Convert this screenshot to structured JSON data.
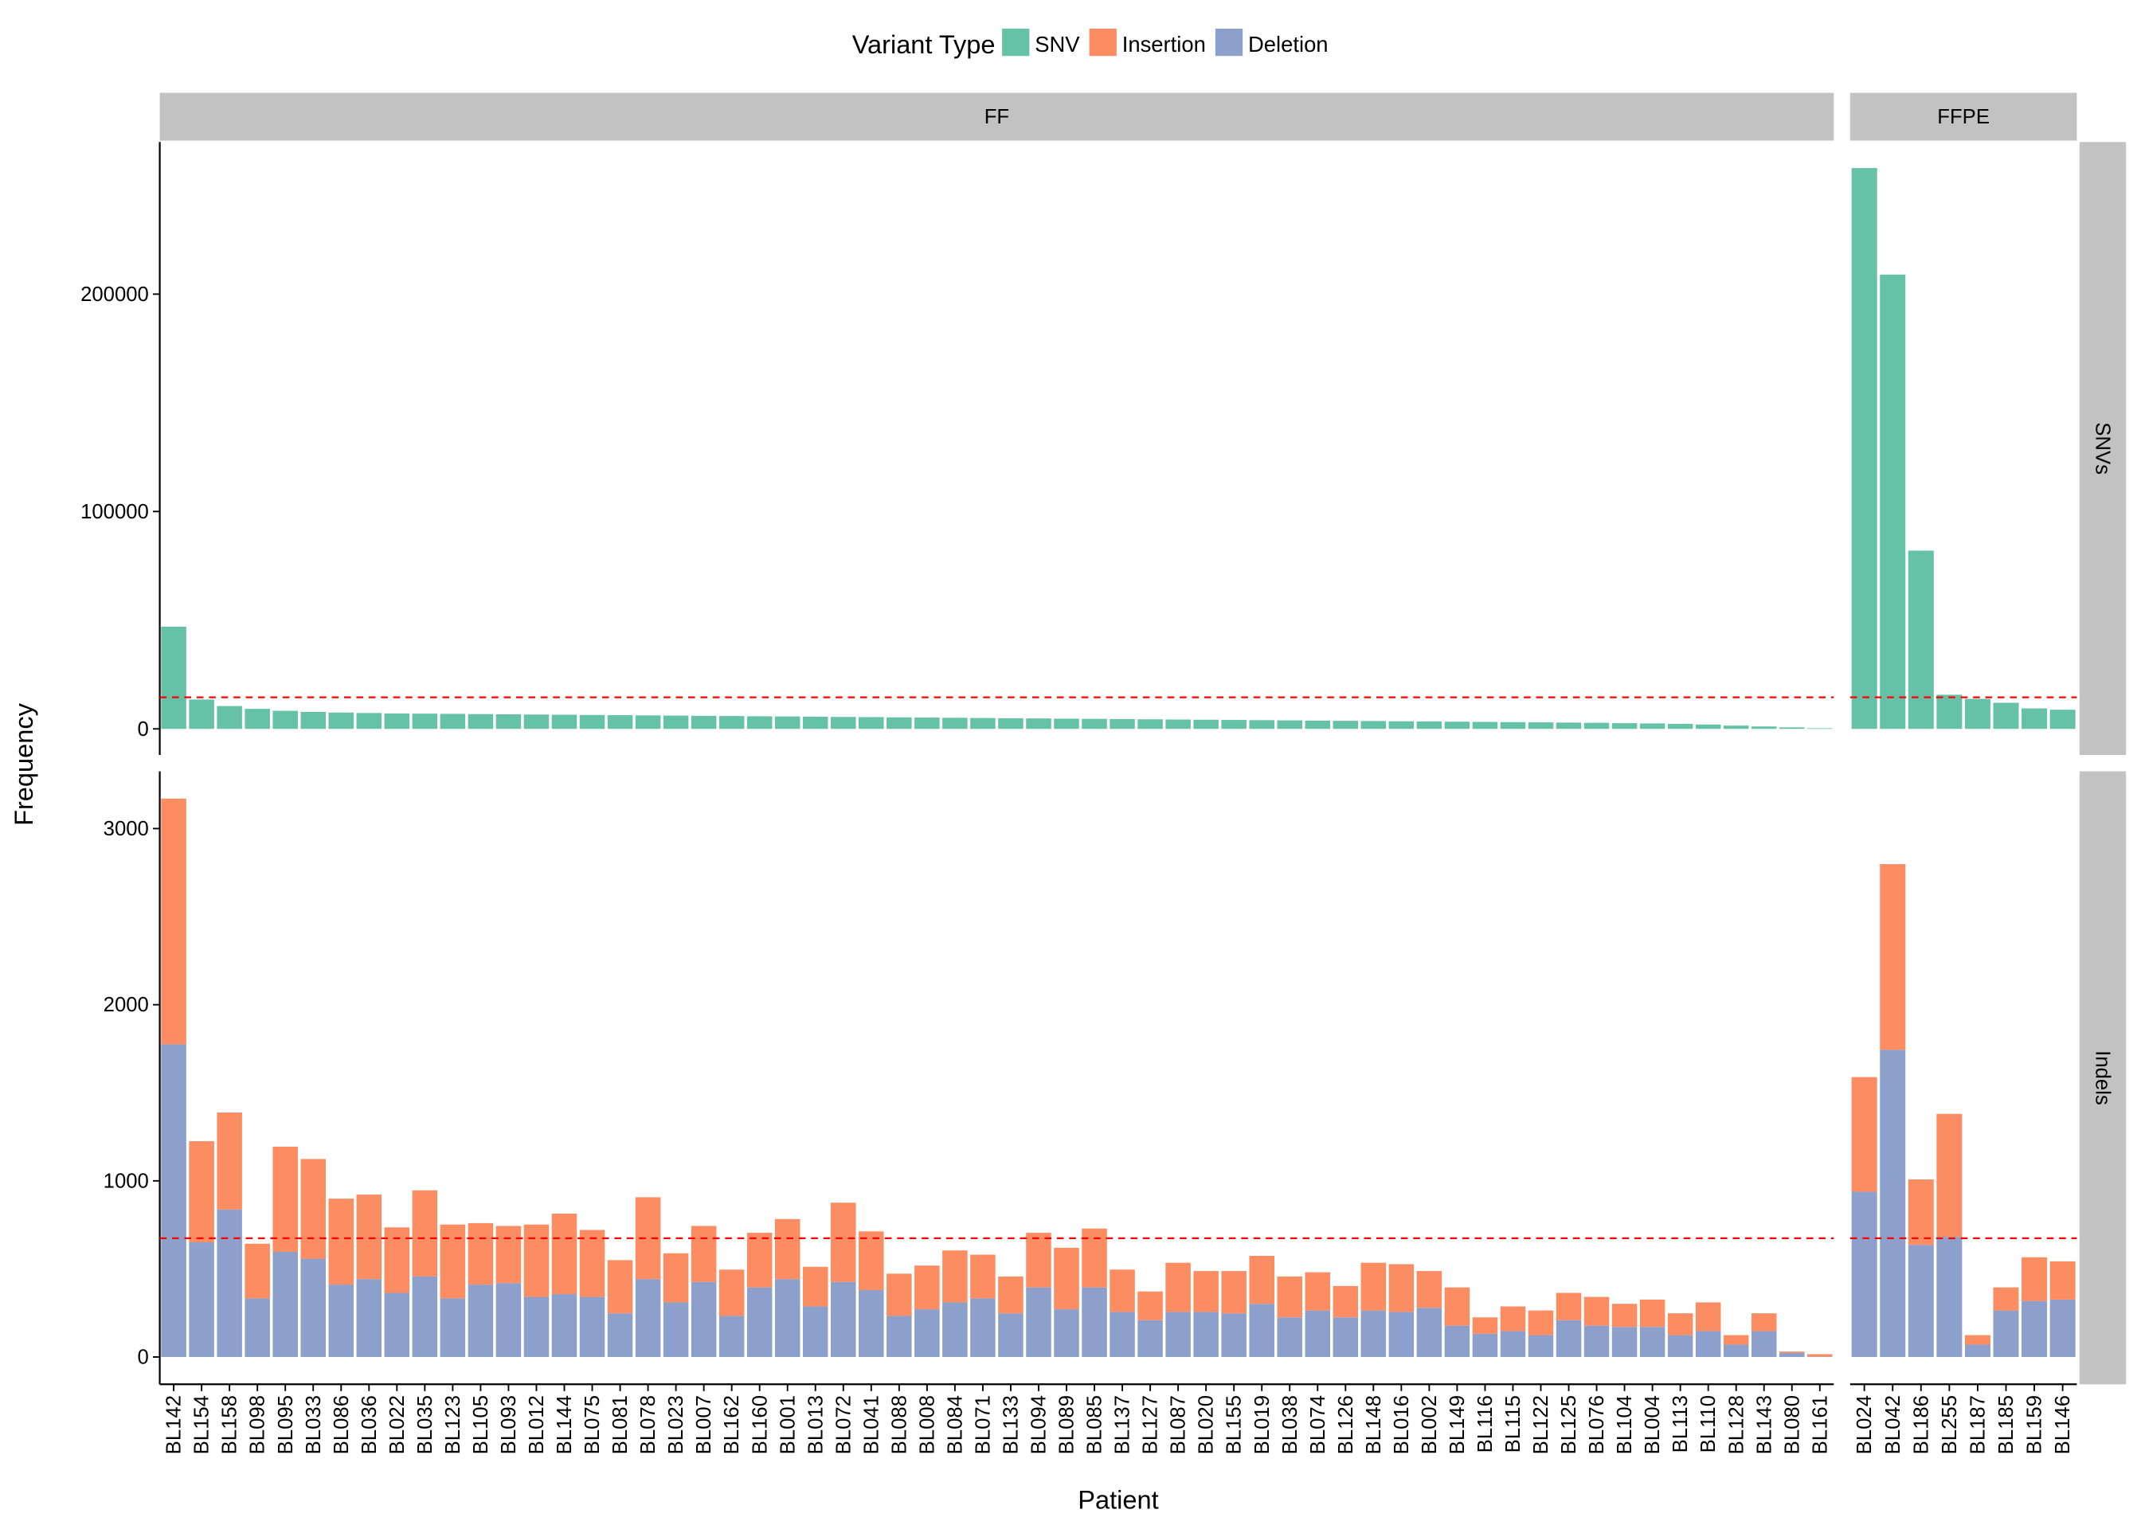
{
  "chart_data": {
    "type": "bar",
    "stacked": true,
    "legend_title": "Variant Type",
    "legend_position": "top",
    "x_label": "Patient",
    "y_label": "Frequency",
    "threshold_color": "#ff0000",
    "columns": [
      {
        "name": "FF",
        "categories": [
          "BL142",
          "BL154",
          "BL158",
          "BL098",
          "BL095",
          "BL033",
          "BL086",
          "BL036",
          "BL022",
          "BL035",
          "BL123",
          "BL105",
          "BL093",
          "BL012",
          "BL144",
          "BL075",
          "BL081",
          "BL078",
          "BL023",
          "BL007",
          "BL162",
          "BL160",
          "BL001",
          "BL013",
          "BL072",
          "BL041",
          "BL088",
          "BL008",
          "BL084",
          "BL071",
          "BL133",
          "BL094",
          "BL089",
          "BL085",
          "BL137",
          "BL127",
          "BL087",
          "BL020",
          "BL155",
          "BL019",
          "BL038",
          "BL074",
          "BL126",
          "BL148",
          "BL016",
          "BL002",
          "BL149",
          "BL116",
          "BL115",
          "BL122",
          "BL125",
          "BL076",
          "BL104",
          "BL004",
          "BL113",
          "BL110",
          "BL128",
          "BL143",
          "BL080",
          "BL161"
        ]
      },
      {
        "name": "FFPE",
        "categories": [
          "BL024",
          "BL042",
          "BL186",
          "BL255",
          "BL187",
          "BL185",
          "BL159",
          "BL146"
        ]
      }
    ],
    "rows": [
      {
        "name": "SNVs",
        "ylim": [
          -12000,
          270000
        ],
        "yticks": [
          0,
          100000,
          200000
        ],
        "threshold": 14500,
        "series": [
          {
            "name": "SNV",
            "color": "#66c2a5",
            "values": [
              [
                47000,
                13500,
                10500,
                9200,
                8300,
                7800,
                7500,
                7300,
                7100,
                7000,
                6900,
                6800,
                6700,
                6600,
                6500,
                6400,
                6300,
                6200,
                6100,
                6000,
                5900,
                5800,
                5700,
                5600,
                5500,
                5400,
                5300,
                5200,
                5100,
                5000,
                4900,
                4800,
                4700,
                4600,
                4500,
                4400,
                4300,
                4200,
                4100,
                4000,
                3900,
                3800,
                3700,
                3600,
                3500,
                3400,
                3300,
                3200,
                3100,
                3000,
                2900,
                2800,
                2600,
                2500,
                2300,
                2000,
                1500,
                1100,
                700,
                300
              ],
              [
                258000,
                209000,
                82000,
                15700,
                13800,
                12000,
                9400,
                8800
              ]
            ]
          }
        ]
      },
      {
        "name": "Indels",
        "ylim": [
          -155,
          3325
        ],
        "yticks": [
          0,
          1000,
          2000,
          3000
        ],
        "threshold": 674,
        "series": [
          {
            "name": "Insertion",
            "color": "#fc8d62",
            "values": [
              [
                1395,
                574,
                551,
                310,
                597,
                566,
                488,
                480,
                372,
                489,
                419,
                349,
                325,
                411,
                457,
                380,
                302,
                465,
                279,
                318,
                263,
                310,
                341,
                225,
                450,
                333,
                240,
                248,
                295,
                248,
                209,
                310,
                349,
                334,
                240,
                163,
                279,
                232,
                240,
                272,
                232,
                217,
                178,
                271,
                271,
                209,
                217,
                93,
                140,
                140,
                155,
                163,
                131,
                155,
                124,
                163,
                54,
                101,
                8,
                14
              ],
              [
                651,
                1054,
                372,
                698,
                54,
                131,
                248,
                217
              ]
            ]
          },
          {
            "name": "Deletion",
            "color": "#8da0cb",
            "values": [
              [
                1775,
                651,
                837,
                333,
                597,
                558,
                411,
                442,
                364,
                457,
                333,
                411,
                419,
                341,
                357,
                341,
                248,
                442,
                310,
                426,
                233,
                395,
                442,
                287,
                426,
                380,
                233,
                271,
                310,
                333,
                248,
                395,
                271,
                395,
                256,
                209,
                256,
                256,
                248,
                302,
                225,
                264,
                225,
                264,
                256,
                279,
                178,
                132,
                147,
                124,
                209,
                178,
                171,
                171,
                124,
                147,
                70,
                147,
                23,
                2
              ],
              [
                938,
                1744,
                636,
                682,
                70,
                264,
                318,
                326
              ]
            ]
          }
        ]
      }
    ]
  }
}
